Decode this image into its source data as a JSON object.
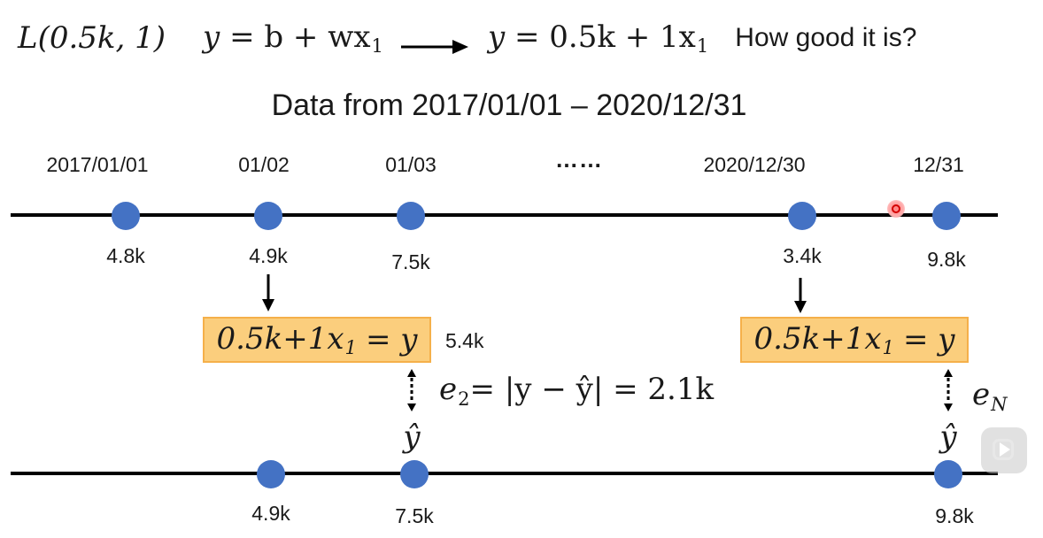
{
  "header": {
    "loss": "L(0.5k, 1)",
    "model_y": "y",
    "model_eq": "= b + wx",
    "model_sub": "1",
    "result_y": "y",
    "result_eq": "= 0.5k + 1x",
    "result_sub": "1",
    "question": "How good it is?"
  },
  "subtitle": "Data from 2017/01/01 – 2020/12/31",
  "top_timeline": {
    "dates": [
      "2017/01/01",
      "01/02",
      "01/03",
      "2020/12/30",
      "12/31"
    ],
    "ellipsis": "……",
    "values": [
      "4.8k",
      "4.9k",
      "7.5k",
      "3.4k",
      "9.8k"
    ]
  },
  "boxes": {
    "left": {
      "lhs": "0.5k+1x",
      "sub": "1",
      "rhs": "= y"
    },
    "left_result": "5.4k",
    "right": {
      "lhs": "0.5k+1x",
      "sub": "1",
      "rhs": "= y"
    }
  },
  "error": {
    "e2_label": "e",
    "e2_sub": "2",
    "e2_expr": "= |y − ŷ| = 2.1k",
    "eN_label": "e",
    "eN_sub": "N"
  },
  "yhat_label": "ŷ",
  "bottom_timeline": {
    "values": [
      "4.9k",
      "7.5k",
      "9.8k"
    ]
  },
  "colors": {
    "point": "#4472c4",
    "box_fill": "#fbce7d",
    "box_border": "#f5b04a",
    "axis": "#000000"
  }
}
